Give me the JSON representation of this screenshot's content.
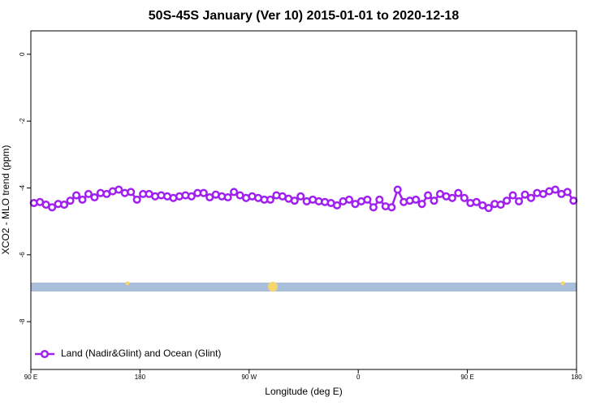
{
  "chart_data": {
    "type": "line",
    "title": "50S-45S January (Ver 10)   2015-01-01 to 2020-12-18",
    "x_label": "Longitude (deg E)",
    "y_label": "XCO2 - MLO trend (ppm)",
    "x": [
      92.5,
      97.5,
      102.5,
      107.5,
      112.5,
      117.5,
      122.5,
      127.5,
      132.5,
      137.5,
      142.5,
      147.5,
      152.5,
      157.5,
      162.5,
      167.5,
      172.5,
      177.5,
      182.5,
      187.5,
      192.5,
      197.5,
      202.5,
      207.5,
      212.5,
      217.5,
      222.5,
      227.5,
      232.5,
      237.5,
      242.5,
      247.5,
      252.5,
      257.5,
      262.5,
      267.5,
      272.5,
      277.5,
      282.5,
      287.5,
      292.5,
      297.5,
      302.5,
      307.5,
      312.5,
      317.5,
      322.5,
      327.5,
      332.5,
      337.5,
      342.5,
      347.5,
      352.5,
      357.5,
      362.5,
      367.5,
      372.5,
      377.5,
      382.5,
      387.5,
      392.5,
      397.5,
      402.5,
      407.5,
      412.5,
      417.5,
      422.5,
      427.5,
      432.5,
      437.5,
      442.5,
      447.5,
      452.5,
      457.5,
      462.5,
      467.5,
      472.5,
      477.5,
      482.5,
      487.5,
      492.5,
      497.5,
      502.5,
      507.5,
      512.5,
      517.5,
      522.5,
      527.5,
      532.5,
      537.5
    ],
    "series": [
      {
        "name": "Land (Nadir&Glint) and Ocean (Glint)",
        "color": "#a020f0",
        "values": [
          -4.45,
          -4.42,
          -4.5,
          -4.58,
          -4.48,
          -4.5,
          -4.38,
          -4.22,
          -4.35,
          -4.18,
          -4.28,
          -4.15,
          -4.18,
          -4.1,
          -4.05,
          -4.15,
          -4.12,
          -4.35,
          -4.18,
          -4.18,
          -4.25,
          -4.22,
          -4.25,
          -4.3,
          -4.25,
          -4.22,
          -4.25,
          -4.15,
          -4.15,
          -4.28,
          -4.2,
          -4.25,
          -4.28,
          -4.12,
          -4.22,
          -4.3,
          -4.25,
          -4.3,
          -4.35,
          -4.35,
          -4.22,
          -4.25,
          -4.32,
          -4.38,
          -4.25,
          -4.4,
          -4.35,
          -4.4,
          -4.42,
          -4.45,
          -4.52,
          -4.4,
          -4.35,
          -4.48,
          -4.4,
          -4.35,
          -4.58,
          -4.35,
          -4.55,
          -4.58,
          -4.05,
          -4.42,
          -4.38,
          -4.35,
          -4.48,
          -4.22,
          -4.38,
          -4.18,
          -4.25,
          -4.3,
          -4.15,
          -4.3,
          -4.45,
          -4.42,
          -4.52,
          -4.6,
          -4.48,
          -4.5,
          -4.38,
          -4.22,
          -4.4,
          -4.2,
          -4.3,
          -4.15,
          -4.18,
          -4.1,
          -4.05,
          -4.18,
          -4.12,
          -4.38
        ]
      }
    ],
    "xlim": [
      90,
      540
    ],
    "xticks": [
      {
        "value": 90,
        "label": "90 E"
      },
      180,
      {
        "value": 270,
        "label": "90 W"
      },
      {
        "value": 360,
        "label": "0"
      },
      {
        "value": 450,
        "label": "90 E"
      },
      {
        "value": 540,
        "label": "180"
      }
    ],
    "ylim": [
      -9.43,
      0.7
    ],
    "yticks": [
      0,
      -2,
      -4,
      -6,
      -8
    ],
    "legend": "bottom-left"
  }
}
